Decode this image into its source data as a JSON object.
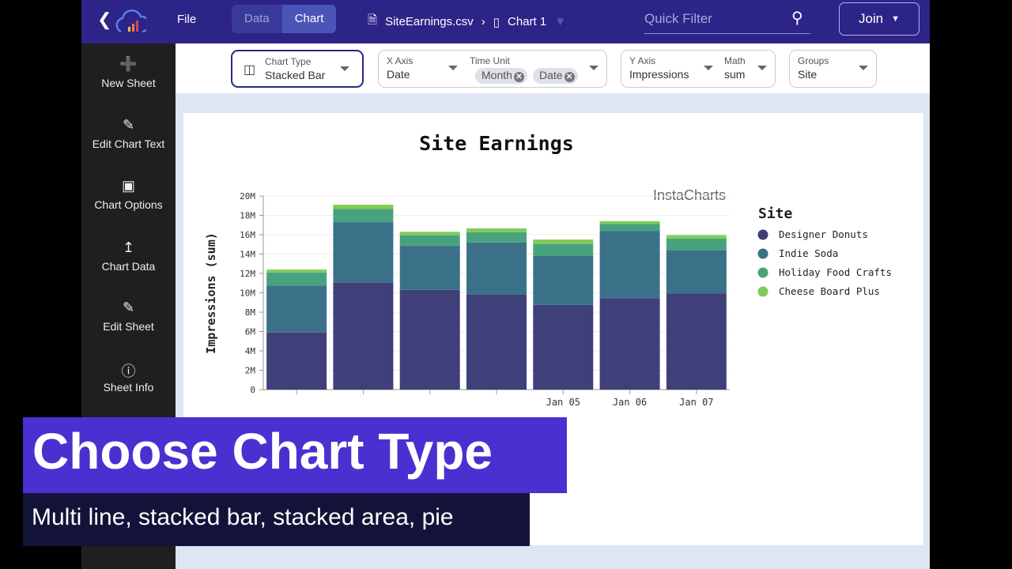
{
  "topbar": {
    "file": "File",
    "tabs": [
      {
        "label": "Data",
        "active": false
      },
      {
        "label": "Chart",
        "active": true
      }
    ],
    "filename": "SiteEarnings.csv",
    "chart_name": "Chart 1",
    "quick_filter_placeholder": "Quick Filter",
    "join": "Join",
    "accent": "#2d2488"
  },
  "sidebar": {
    "items": [
      {
        "label": "New Sheet",
        "icon": "plus-icon"
      },
      {
        "label": "Edit Chart Text",
        "icon": "pencil-icon"
      },
      {
        "label": "Chart Options",
        "icon": "frame-icon"
      },
      {
        "label": "Chart Data",
        "icon": "chart-search-icon"
      },
      {
        "label": "Edit Sheet",
        "icon": "pencil-icon"
      },
      {
        "label": "Sheet Info",
        "icon": "info-icon"
      }
    ]
  },
  "toolbar": {
    "chart_type": {
      "label": "Chart Type",
      "value": "Stacked Bar"
    },
    "x_axis": {
      "label": "X Axis",
      "value": "Date"
    },
    "time_unit": {
      "label": "Time Unit",
      "chips": [
        "Month",
        "Date"
      ]
    },
    "y_axis": {
      "label": "Y Axis",
      "value": "Impressions"
    },
    "math": {
      "label": "Math",
      "value": "sum"
    },
    "groups": {
      "label": "Groups",
      "value": "Site"
    }
  },
  "chart_data": {
    "type": "bar",
    "stacked": true,
    "title": "Site Earnings",
    "ylabel": "Impressions (sum)",
    "xlabel": "",
    "watermark": "InstaCharts",
    "ylim": [
      0,
      20000000
    ],
    "yticks": [
      "0",
      "2M",
      "4M",
      "6M",
      "8M",
      "10M",
      "12M",
      "14M",
      "16M",
      "18M",
      "20M"
    ],
    "categories": [
      "",
      "",
      "",
      "",
      "Jan 05",
      "Jan 06",
      "Jan 07"
    ],
    "legend_title": "Site",
    "legend_position": "right",
    "grid": true,
    "series": [
      {
        "name": "Designer Donuts",
        "color": "#3f3f7a",
        "values": [
          5900000,
          11050000,
          10300000,
          9800000,
          8750000,
          9450000,
          9950000
        ]
      },
      {
        "name": "Indie Soda",
        "color": "#3a7189",
        "values": [
          4850000,
          6250000,
          4550000,
          5400000,
          5050000,
          6950000,
          4450000
        ]
      },
      {
        "name": "Holiday Food Crafts",
        "color": "#49a27e",
        "values": [
          1350000,
          1350000,
          1100000,
          1050000,
          1250000,
          700000,
          1200000
        ]
      },
      {
        "name": "Cheese Board Plus",
        "color": "#7fcc5a",
        "values": [
          300000,
          450000,
          350000,
          400000,
          450000,
          300000,
          350000
        ]
      }
    ]
  },
  "overlay": {
    "title": "Choose Chart Type",
    "subtitle": "Multi line, stacked bar, stacked area, pie"
  }
}
